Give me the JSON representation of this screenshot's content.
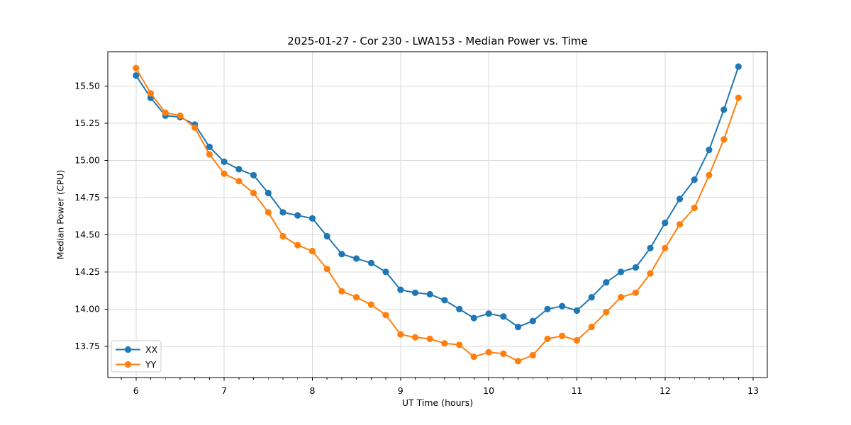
{
  "chart_data": {
    "type": "line",
    "title": "2025-01-27 - Cor 230 - LWA153 - Median Power vs. Time",
    "xlabel": "UT Time (hours)",
    "ylabel": "Median Power (CPU)",
    "xlim": [
      5.68,
      13.16
    ],
    "ylim": [
      13.54,
      15.73
    ],
    "xticks": [
      6,
      7,
      8,
      9,
      10,
      11,
      12,
      13
    ],
    "yticks": [
      13.75,
      14.0,
      14.25,
      14.5,
      14.75,
      15.0,
      15.25,
      15.5
    ],
    "minor_xtick_subdivision": 6,
    "grid": true,
    "legend": {
      "position": "lower left"
    },
    "x": [
      6.0,
      6.167,
      6.333,
      6.5,
      6.667,
      6.833,
      7.0,
      7.167,
      7.333,
      7.5,
      7.667,
      7.833,
      8.0,
      8.167,
      8.333,
      8.5,
      8.667,
      8.833,
      9.0,
      9.167,
      9.333,
      9.5,
      9.667,
      9.833,
      10.0,
      10.167,
      10.333,
      10.5,
      10.667,
      10.833,
      11.0,
      11.167,
      11.333,
      11.5,
      11.667,
      11.833,
      12.0,
      12.167,
      12.333,
      12.5,
      12.667,
      12.833
    ],
    "series": [
      {
        "name": "XX",
        "color": "#1f77b4",
        "values": [
          15.57,
          15.42,
          15.3,
          15.29,
          15.24,
          15.09,
          14.99,
          14.94,
          14.9,
          14.78,
          14.65,
          14.63,
          14.61,
          14.49,
          14.37,
          14.34,
          14.31,
          14.25,
          14.13,
          14.11,
          14.1,
          14.06,
          14.0,
          13.94,
          13.97,
          13.95,
          13.88,
          13.92,
          14.0,
          14.02,
          13.99,
          14.08,
          14.18,
          14.25,
          14.28,
          14.41,
          14.58,
          14.74,
          14.87,
          15.07,
          15.34,
          15.63
        ]
      },
      {
        "name": "YY",
        "color": "#ff7f0e",
        "values": [
          15.62,
          15.45,
          15.32,
          15.3,
          15.22,
          15.04,
          14.91,
          14.86,
          14.78,
          14.65,
          14.49,
          14.43,
          14.39,
          14.27,
          14.12,
          14.08,
          14.03,
          13.96,
          13.83,
          13.81,
          13.8,
          13.77,
          13.76,
          13.68,
          13.71,
          13.7,
          13.65,
          13.69,
          13.8,
          13.82,
          13.79,
          13.88,
          13.98,
          14.08,
          14.11,
          14.24,
          14.41,
          14.57,
          14.68,
          14.9,
          15.14,
          15.42
        ]
      }
    ],
    "colors": {
      "grid": "#d9d9d9",
      "spine": "#000000",
      "background": "#ffffff",
      "legend_border": "#cccccc"
    }
  }
}
